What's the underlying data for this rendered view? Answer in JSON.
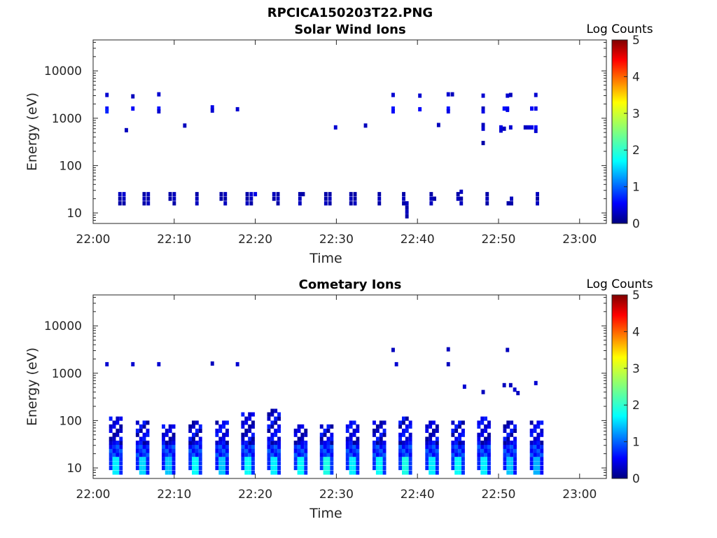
{
  "figure_title": "RPCICA150203T22.PNG",
  "chart_data": [
    {
      "type": "heatmap",
      "title": "Solar Wind Ions",
      "xlabel": "Time",
      "ylabel": "Energy (eV)",
      "x_ticks": [
        "22:00",
        "22:10",
        "22:20",
        "22:30",
        "22:40",
        "22:50",
        "23:00"
      ],
      "xlim_minutes": [
        0,
        63.3
      ],
      "y_scale": "log",
      "ylim": [
        6,
        45000
      ],
      "y_ticks": [
        {
          "value": 10,
          "label": "10"
        },
        {
          "value": 100,
          "label": "100"
        },
        {
          "value": 1000,
          "label": "1000"
        },
        {
          "value": 10000,
          "label": "10000"
        }
      ],
      "colorbar": {
        "title": "Log Counts",
        "range": [
          0,
          5
        ],
        "ticks": [
          "0",
          "1",
          "2",
          "3",
          "4",
          "5"
        ],
        "colormap": "jet"
      },
      "cells": [
        [
          1.7,
          3100,
          0.4
        ],
        [
          1.7,
          1600,
          0.7
        ],
        [
          1.7,
          1400,
          0.8
        ],
        [
          3.3,
          25,
          0.3
        ],
        [
          3.3,
          20,
          0.2
        ],
        [
          3.8,
          25,
          0.4
        ],
        [
          3.8,
          20,
          0.3
        ],
        [
          3.8,
          16,
          0.2
        ],
        [
          3.3,
          16,
          0.2
        ],
        [
          4.1,
          560,
          0.3
        ],
        [
          4.9,
          2900,
          0.3
        ],
        [
          4.9,
          1600,
          0.6
        ],
        [
          6.3,
          25,
          0.2
        ],
        [
          6.3,
          20,
          0.3
        ],
        [
          6.3,
          16,
          0.2
        ],
        [
          6.8,
          25,
          0.3
        ],
        [
          6.8,
          20,
          0.2
        ],
        [
          6.8,
          16,
          0.3
        ],
        [
          8.1,
          3200,
          0.4
        ],
        [
          8.1,
          1600,
          0.7
        ],
        [
          8.1,
          1400,
          0.4
        ],
        [
          11.3,
          700,
          0.3
        ],
        [
          9.5,
          25,
          0.2
        ],
        [
          10.0,
          25,
          0.3
        ],
        [
          10.0,
          20,
          0.3
        ],
        [
          10.0,
          16,
          0.2
        ],
        [
          9.5,
          20,
          0.2
        ],
        [
          12.8,
          25,
          0.2
        ],
        [
          12.8,
          20,
          0.3
        ],
        [
          12.8,
          16,
          0.3
        ],
        [
          14.7,
          1700,
          0.5
        ],
        [
          14.7,
          1450,
          0.4
        ],
        [
          15.8,
          25,
          0.2
        ],
        [
          16.3,
          25,
          0.3
        ],
        [
          16.3,
          20,
          0.2
        ],
        [
          16.3,
          16,
          0.3
        ],
        [
          15.8,
          20,
          0.2
        ],
        [
          17.8,
          1550,
          0.4
        ],
        [
          19.0,
          25,
          0.2
        ],
        [
          19.0,
          20,
          0.2
        ],
        [
          19.0,
          16,
          0.3
        ],
        [
          19.5,
          20,
          0.3
        ],
        [
          19.5,
          16,
          0.2
        ],
        [
          19.5,
          25,
          0.4
        ],
        [
          20.0,
          25,
          0.5
        ],
        [
          22.3,
          25,
          0.3
        ],
        [
          22.3,
          20,
          0.2
        ],
        [
          22.8,
          25,
          0.2
        ],
        [
          22.8,
          20,
          0.3
        ],
        [
          22.8,
          16,
          0.2
        ],
        [
          25.5,
          25,
          0.2
        ],
        [
          25.5,
          20,
          0.3
        ],
        [
          25.5,
          16,
          0.3
        ],
        [
          25.9,
          25,
          0.2
        ],
        [
          28.7,
          25,
          0.2
        ],
        [
          28.7,
          20,
          0.2
        ],
        [
          28.7,
          16,
          0.3
        ],
        [
          29.2,
          25,
          0.2
        ],
        [
          29.2,
          20,
          0.3
        ],
        [
          29.2,
          16,
          0.2
        ],
        [
          29.9,
          640,
          0.4
        ],
        [
          31.8,
          25,
          0.2
        ],
        [
          31.8,
          20,
          0.3
        ],
        [
          31.8,
          16,
          0.2
        ],
        [
          32.3,
          25,
          0.2
        ],
        [
          32.3,
          20,
          0.2
        ],
        [
          32.3,
          16,
          0.3
        ],
        [
          33.6,
          700,
          0.3
        ],
        [
          35.3,
          25,
          0.2
        ],
        [
          35.3,
          20,
          0.3
        ],
        [
          35.3,
          16,
          0.2
        ],
        [
          37.0,
          3100,
          0.4
        ],
        [
          37.0,
          1600,
          0.7
        ],
        [
          37.0,
          1400,
          0.6
        ],
        [
          38.3,
          25,
          0.2
        ],
        [
          38.3,
          20,
          0.3
        ],
        [
          38.7,
          16,
          0.3
        ],
        [
          38.7,
          13,
          0.2
        ],
        [
          38.7,
          10.5,
          0.3
        ],
        [
          38.7,
          8.5,
          0.2
        ],
        [
          38.3,
          16,
          0.2
        ],
        [
          40.3,
          3000,
          0.4
        ],
        [
          40.3,
          1550,
          0.6
        ],
        [
          41.7,
          25,
          0.2
        ],
        [
          41.7,
          20,
          0.3
        ],
        [
          42.1,
          20,
          0.2
        ],
        [
          41.7,
          16,
          0.3
        ],
        [
          42.6,
          720,
          0.3
        ],
        [
          43.8,
          3200,
          0.4
        ],
        [
          43.8,
          1600,
          0.7
        ],
        [
          43.8,
          1400,
          0.5
        ],
        [
          44.3,
          3200,
          0.3
        ],
        [
          45.0,
          25,
          0.2
        ],
        [
          45.0,
          20,
          0.3
        ],
        [
          45.4,
          16,
          0.3
        ],
        [
          45.4,
          20,
          0.2
        ],
        [
          45.4,
          28,
          0.3
        ],
        [
          48.1,
          3000,
          0.4
        ],
        [
          48.1,
          1600,
          0.3
        ],
        [
          48.1,
          1400,
          0.5
        ],
        [
          48.1,
          720,
          0.3
        ],
        [
          48.1,
          600,
          0.4
        ],
        [
          48.1,
          300,
          0.2
        ],
        [
          48.6,
          25,
          0.2
        ],
        [
          48.6,
          20,
          0.3
        ],
        [
          48.6,
          16,
          0.2
        ],
        [
          50.3,
          640,
          0.5
        ],
        [
          50.3,
          550,
          0.4
        ],
        [
          50.7,
          600,
          0.3
        ],
        [
          51.1,
          3000,
          0.4
        ],
        [
          51.1,
          1600,
          0.6
        ],
        [
          51.1,
          1500,
          0.5
        ],
        [
          51.5,
          3100,
          0.3
        ],
        [
          51.5,
          640,
          0.4
        ],
        [
          50.7,
          1600,
          0.7
        ],
        [
          51.6,
          16,
          0.2
        ],
        [
          51.6,
          20,
          0.3
        ],
        [
          51.2,
          16,
          0.2
        ],
        [
          53.3,
          640,
          0.3
        ],
        [
          53.7,
          640,
          0.4
        ],
        [
          54.1,
          640,
          0.5
        ],
        [
          54.6,
          640,
          0.6
        ],
        [
          54.6,
          540,
          0.4
        ],
        [
          54.6,
          3100,
          0.4
        ],
        [
          54.6,
          1600,
          0.5
        ],
        [
          54.1,
          1600,
          0.6
        ],
        [
          54.8,
          25,
          0.3
        ],
        [
          54.8,
          20,
          0.2
        ],
        [
          54.8,
          16,
          0.3
        ]
      ]
    },
    {
      "type": "heatmap",
      "title": "Cometary Ions",
      "xlabel": "Time",
      "ylabel": "Energy (eV)",
      "x_ticks": [
        "22:00",
        "22:10",
        "22:20",
        "22:30",
        "22:40",
        "22:50",
        "23:00"
      ],
      "xlim_minutes": [
        0,
        63.3
      ],
      "y_scale": "log",
      "ylim": [
        6,
        45000
      ],
      "y_ticks": [
        {
          "value": 10,
          "label": "10"
        },
        {
          "value": 100,
          "label": "100"
        },
        {
          "value": 1000,
          "label": "1000"
        },
        {
          "value": 10000,
          "label": "10000"
        }
      ],
      "colorbar": {
        "title": "Log Counts",
        "range": [
          0,
          5
        ],
        "ticks": [
          "0",
          "1",
          "2",
          "3",
          "4",
          "5"
        ],
        "colormap": "jet"
      },
      "bursts": [
        {
          "t": 2.8,
          "peak": 1.8,
          "top": 110
        },
        {
          "t": 6.1,
          "peak": 1.7,
          "top": 90
        },
        {
          "t": 9.3,
          "peak": 1.6,
          "top": 75
        },
        {
          "t": 12.6,
          "peak": 1.9,
          "top": 95
        },
        {
          "t": 15.9,
          "peak": 1.6,
          "top": 90
        },
        {
          "t": 19.1,
          "peak": 1.9,
          "top": 140
        },
        {
          "t": 22.3,
          "peak": 1.8,
          "top": 160
        },
        {
          "t": 25.6,
          "peak": 1.9,
          "top": 75
        },
        {
          "t": 28.8,
          "peak": 2.0,
          "top": 85
        },
        {
          "t": 32.0,
          "peak": 1.8,
          "top": 90
        },
        {
          "t": 35.3,
          "peak": 1.9,
          "top": 95
        },
        {
          "t": 38.5,
          "peak": 2.0,
          "top": 110
        },
        {
          "t": 41.8,
          "peak": 1.8,
          "top": 90
        },
        {
          "t": 45.0,
          "peak": 1.9,
          "top": 90
        },
        {
          "t": 48.2,
          "peak": 1.8,
          "top": 110
        },
        {
          "t": 51.4,
          "peak": 1.6,
          "top": 95
        },
        {
          "t": 54.7,
          "peak": 1.5,
          "top": 95
        }
      ],
      "cells": [
        [
          1.7,
          1550,
          0.4
        ],
        [
          4.9,
          1550,
          0.4
        ],
        [
          8.1,
          1550,
          0.4
        ],
        [
          14.7,
          1600,
          0.3
        ],
        [
          17.8,
          1550,
          0.4
        ],
        [
          37.0,
          3100,
          0.3
        ],
        [
          37.4,
          1550,
          0.4
        ],
        [
          43.8,
          3200,
          0.3
        ],
        [
          43.8,
          1550,
          0.3
        ],
        [
          45.8,
          520,
          0.4
        ],
        [
          48.1,
          400,
          0.3
        ],
        [
          50.7,
          560,
          0.3
        ],
        [
          51.1,
          3100,
          0.3
        ],
        [
          52.0,
          450,
          0.4
        ],
        [
          52.4,
          380,
          0.3
        ],
        [
          54.6,
          620,
          0.4
        ],
        [
          51.5,
          560,
          0.3
        ]
      ]
    }
  ]
}
